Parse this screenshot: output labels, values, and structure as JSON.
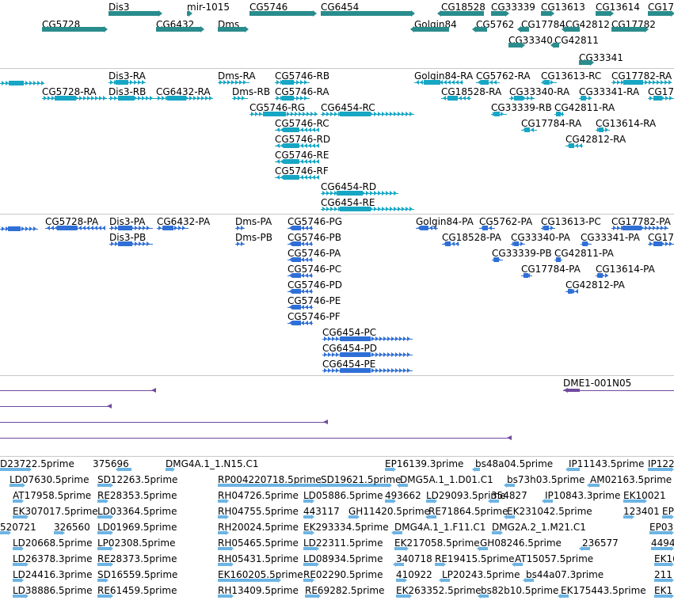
{
  "tracks": [
    {
      "id": "genes",
      "color": "#2a8c8c",
      "features": [
        {
          "label": "CG5728"
        },
        {
          "label": "Dis3"
        },
        {
          "label": "CG6432"
        },
        {
          "label": "mir-1015"
        },
        {
          "label": "Dms"
        },
        {
          "label": "CG5746"
        },
        {
          "label": "CG6454"
        },
        {
          "label": "Golgin84"
        },
        {
          "label": "CG18528"
        },
        {
          "label": "CG5762"
        },
        {
          "label": "CG33339"
        },
        {
          "label": "CG33340"
        },
        {
          "label": "CG13613"
        },
        {
          "label": "CG17784"
        },
        {
          "label": "CG42811"
        },
        {
          "label": "CG42812"
        },
        {
          "label": "CG33341"
        },
        {
          "label": "CG13614"
        },
        {
          "label": "CG17782"
        },
        {
          "label": "CG17"
        }
      ]
    },
    {
      "id": "transcripts-ra",
      "color": "#17a6c4",
      "features": [
        {
          "label": ""
        },
        {
          "label": "CG5728-RA"
        },
        {
          "label": "Dis3-RA"
        },
        {
          "label": "Dis3-RB"
        },
        {
          "label": "CG6432-RA"
        },
        {
          "label": "Dms-RA"
        },
        {
          "label": "Dms-RB"
        },
        {
          "label": "CG5746-RB"
        },
        {
          "label": "CG5746-RA"
        },
        {
          "label": "CG5746-RG"
        },
        {
          "label": "CG5746-RC"
        },
        {
          "label": "CG5746-RD"
        },
        {
          "label": "CG5746-RE"
        },
        {
          "label": "CG5746-RF"
        },
        {
          "label": "CG6454-RC"
        },
        {
          "label": "CG6454-RD"
        },
        {
          "label": "CG6454-RE"
        },
        {
          "label": "Golgin84-RA"
        },
        {
          "label": "CG18528-RA"
        },
        {
          "label": "CG5762-RA"
        },
        {
          "label": "CG33340-RA"
        },
        {
          "label": "CG33339-RB"
        },
        {
          "label": "CG13613-RC"
        },
        {
          "label": "CG42811-RA"
        },
        {
          "label": "CG17784-RA"
        },
        {
          "label": "CG42812-RA"
        },
        {
          "label": "CG33341-RA"
        },
        {
          "label": "CG17782-RA"
        },
        {
          "label": "CG13614-RA"
        },
        {
          "label": "CG17"
        }
      ]
    },
    {
      "id": "transcripts-pa",
      "color": "#2f6fd6",
      "features": [
        {
          "label": ""
        },
        {
          "label": "CG5728-PA"
        },
        {
          "label": "Dis3-PA"
        },
        {
          "label": "Dis3-PB"
        },
        {
          "label": "CG6432-PA"
        },
        {
          "label": "Dms-PA"
        },
        {
          "label": "Dms-PB"
        },
        {
          "label": "CG5746-PG"
        },
        {
          "label": "CG5746-PB"
        },
        {
          "label": "CG5746-PA"
        },
        {
          "label": "CG5746-PC"
        },
        {
          "label": "CG5746-PD"
        },
        {
          "label": "CG5746-PE"
        },
        {
          "label": "CG5746-PF"
        },
        {
          "label": "CG6454-PC"
        },
        {
          "label": "CG6454-PD"
        },
        {
          "label": "CG6454-PE"
        },
        {
          "label": "Golgin84-PA"
        },
        {
          "label": "CG18528-PA"
        },
        {
          "label": "CG5762-PA"
        },
        {
          "label": "CG33340-PA"
        },
        {
          "label": "CG33339-PB"
        },
        {
          "label": "CG13613-PC"
        },
        {
          "label": "CG42811-PA"
        },
        {
          "label": "CG17784-PA"
        },
        {
          "label": "CG42812-PA"
        },
        {
          "label": "CG33341-PA"
        },
        {
          "label": "CG13614-PA"
        },
        {
          "label": "CG17782-PA"
        },
        {
          "label": "CG17"
        }
      ]
    },
    {
      "id": "clones",
      "color": "#6f4a9e",
      "features": [
        {
          "label": ""
        },
        {
          "label": ""
        },
        {
          "label": ""
        },
        {
          "label": ""
        },
        {
          "label": "DME1-001N05"
        }
      ]
    },
    {
      "id": "ests",
      "color": "#6cb4e4",
      "features": [
        {
          "label": "D23722.5prime"
        },
        {
          "label": "375696"
        },
        {
          "label": "DMG4A.1_1.N15.C1"
        },
        {
          "label": "EP16139.3prime"
        },
        {
          "label": "bs48a04.5prime"
        },
        {
          "label": "IP11143.5prime"
        },
        {
          "label": "IP122"
        },
        {
          "label": "LD07630.5prime"
        },
        {
          "label": "SD12263.5prime"
        },
        {
          "label": "RP004220718.5prime"
        },
        {
          "label": "SD19621.5prime"
        },
        {
          "label": "DMG5A.1_1.D01.C1"
        },
        {
          "label": "bs73h03.5prime"
        },
        {
          "label": "AM02163.5prime"
        },
        {
          "label": "AT17958.5prime"
        },
        {
          "label": "RE28353.5prime"
        },
        {
          "label": "RH04726.5prime"
        },
        {
          "label": "LD05886.5prime"
        },
        {
          "label": "493662"
        },
        {
          "label": "LD29093.5prime"
        },
        {
          "label": "354827"
        },
        {
          "label": "IP10843.3prime"
        },
        {
          "label": "EK10021"
        },
        {
          "label": "EK307017.5prime"
        },
        {
          "label": "LD03364.5prime"
        },
        {
          "label": "RH04755.5prime"
        },
        {
          "label": "443117"
        },
        {
          "label": "GH11420.5prime"
        },
        {
          "label": "RE71864.5prime"
        },
        {
          "label": "EK231042.5prime"
        },
        {
          "label": "123401"
        },
        {
          "label": "EP0"
        },
        {
          "label": "520721"
        },
        {
          "label": "326560"
        },
        {
          "label": "LD01969.5prime"
        },
        {
          "label": "RH20024.5prime"
        },
        {
          "label": "EK293334.5prime"
        },
        {
          "label": "DMG4A.1_1.F11.C1"
        },
        {
          "label": "DMG2A.2_1.M21.C1"
        },
        {
          "label": "EP03"
        },
        {
          "label": "LD20668.5prime"
        },
        {
          "label": "LP02308.5prime"
        },
        {
          "label": "RH05465.5prime"
        },
        {
          "label": "LD22311.5prime"
        },
        {
          "label": "EK217058.5prime"
        },
        {
          "label": "GH08246.5prime"
        },
        {
          "label": "236577"
        },
        {
          "label": "4494"
        },
        {
          "label": "LD26378.3prime"
        },
        {
          "label": "RE28373.5prime"
        },
        {
          "label": "RH05431.5prime"
        },
        {
          "label": "LD08934.5prime"
        },
        {
          "label": "340718"
        },
        {
          "label": "RE19415.5prime"
        },
        {
          "label": "AT15057.5prime"
        },
        {
          "label": "EK16"
        },
        {
          "label": "LD24416.3prime"
        },
        {
          "label": "SD16559.5prime"
        },
        {
          "label": "EK160205.5prime"
        },
        {
          "label": "RE02290.5prime"
        },
        {
          "label": "410922"
        },
        {
          "label": "LP20243.5prime"
        },
        {
          "label": "bs44a07.3prime"
        },
        {
          "label": "211"
        },
        {
          "label": "LD38886.5prime"
        },
        {
          "label": "RE61459.5prime"
        },
        {
          "label": "RH13409.5prime"
        },
        {
          "label": "RE69282.5prime"
        },
        {
          "label": "EK263352.5prime"
        },
        {
          "label": "bs82b10.5prime"
        },
        {
          "label": "EK175443.5prime"
        },
        {
          "label": "EK1"
        }
      ]
    }
  ]
}
